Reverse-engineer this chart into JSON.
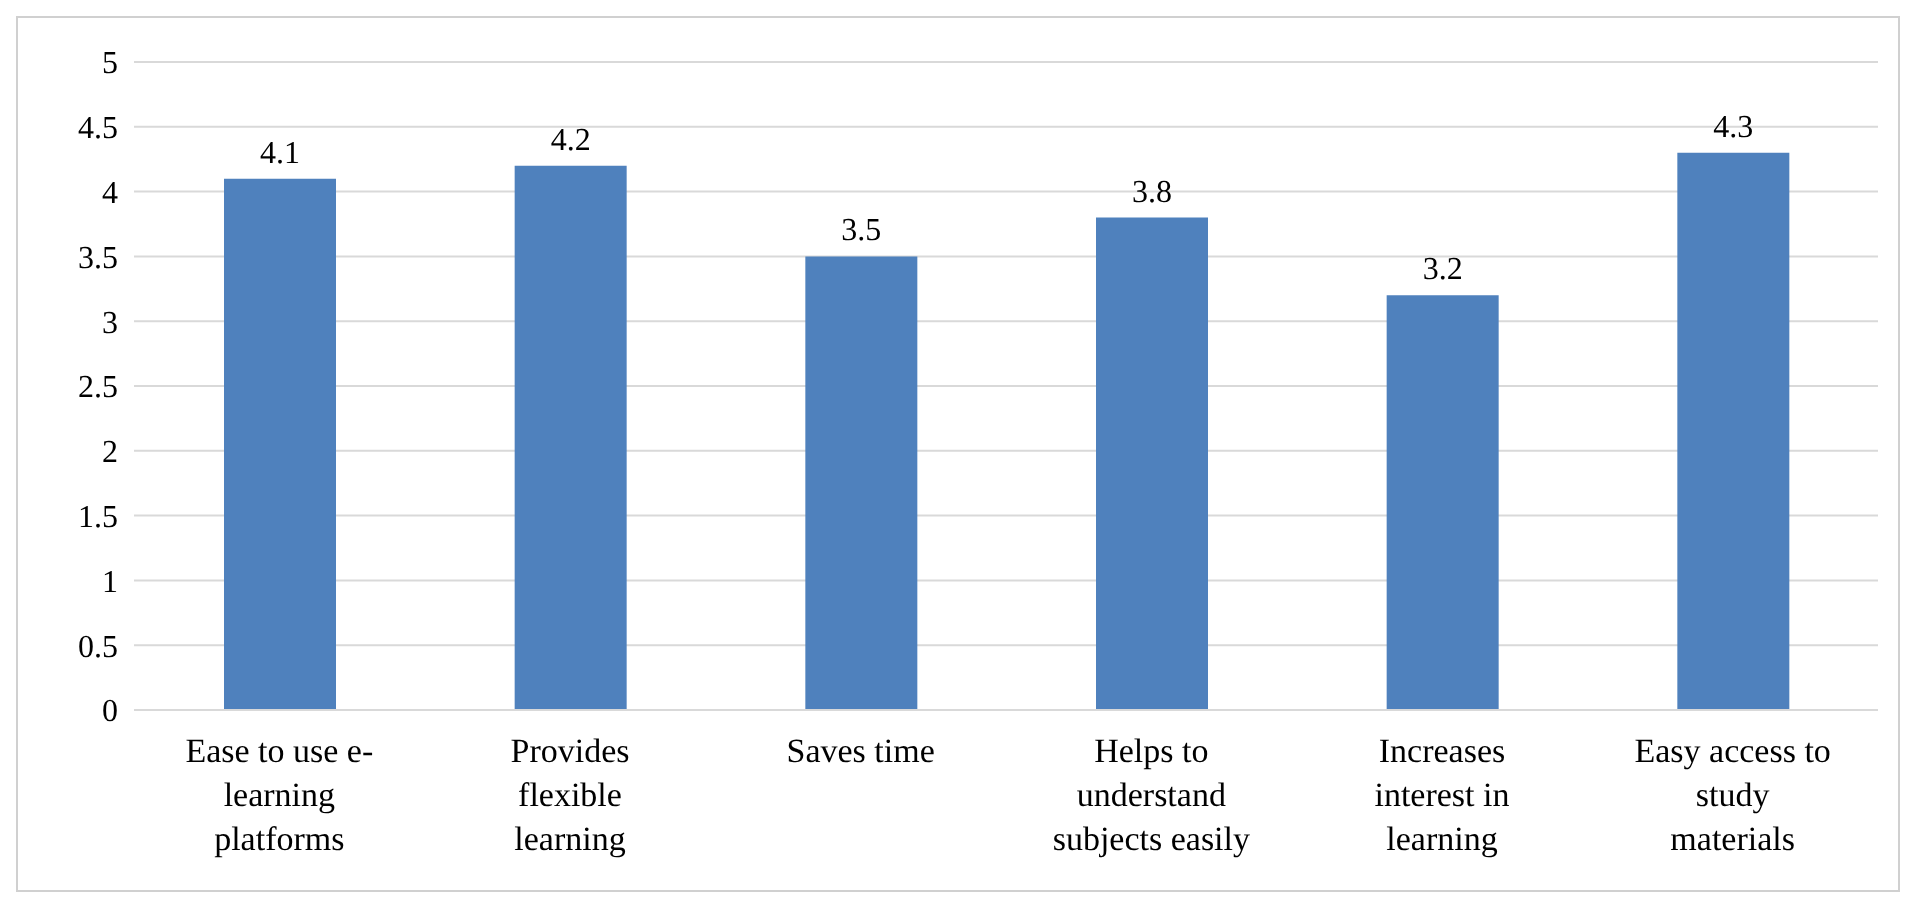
{
  "chart_data": {
    "type": "bar",
    "categories": [
      "Ease to use e-\nlearning\nplatforms",
      "Provides\nflexible\nlearning",
      "Saves time",
      "Helps to\nunderstand\nsubjects easily",
      "Increases\ninterest in\nlearning",
      "Easy access to\nstudy\nmaterials"
    ],
    "values": [
      4.1,
      4.2,
      3.5,
      3.8,
      3.2,
      4.3
    ],
    "color": "#4f81bd",
    "ylim": [
      0,
      5
    ],
    "yticks": [
      0,
      0.5,
      1,
      1.5,
      2,
      2.5,
      3,
      3.5,
      4,
      4.5,
      5
    ],
    "grid": "y",
    "data_labels": true,
    "legend": false
  }
}
